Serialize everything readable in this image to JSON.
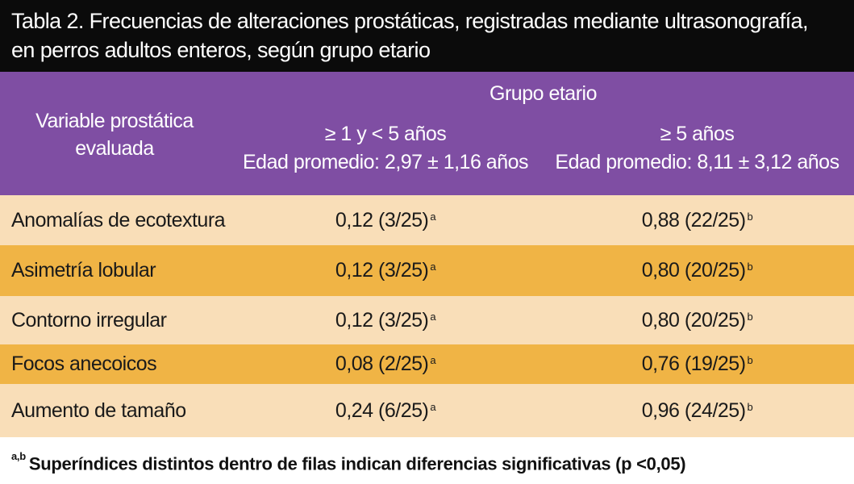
{
  "title": {
    "line1": "Tabla 2. Frecuencias de alteraciones prostáticas, registradas mediante ultrasonografía,",
    "line2": "en perros adultos enteros, según grupo etario"
  },
  "header": {
    "variable_line1": "Variable prostática",
    "variable_line2": "evaluada",
    "group_label": "Grupo etario",
    "col1_range": "≥ 1 y < 5 años",
    "col1_age": "Edad promedio: 2,97 ± 1,16 años",
    "col2_range": "≥ 5 años",
    "col2_age": "Edad promedio: 8,11 ± 3,12 años"
  },
  "rows": [
    {
      "variable": "Anomalías de ecotextura",
      "v1": "0,12 (3/25)",
      "s1": "a",
      "v2": "0,88 (22/25)",
      "s2": "b"
    },
    {
      "variable": "Asimetría lobular",
      "v1": "0,12 (3/25)",
      "s1": "a",
      "v2": "0,80 (20/25)",
      "s2": "b"
    },
    {
      "variable": "Contorno irregular",
      "v1": "0,12 (3/25)",
      "s1": "a",
      "v2": "0,80 (20/25)",
      "s2": "b"
    },
    {
      "variable": "Focos anecoicos",
      "v1": "0,08 (2/25)",
      "s1": "a",
      "v2": "0,76 (19/25)",
      "s2": "b"
    },
    {
      "variable": "Aumento de tamaño",
      "v1": "0,24 (6/25)",
      "s1": "a",
      "v2": "0,96 (24/25)",
      "s2": "b"
    }
  ],
  "footnote": {
    "marks": "a,b",
    "text": "Superíndices distintos dentro de filas indican diferencias significativas (p <0,05)"
  },
  "colors": {
    "title_bg": "#0b0b0b",
    "header_bg": "#7f4ea3",
    "row_light": "#f9deb8",
    "row_dark": "#f0b445"
  }
}
